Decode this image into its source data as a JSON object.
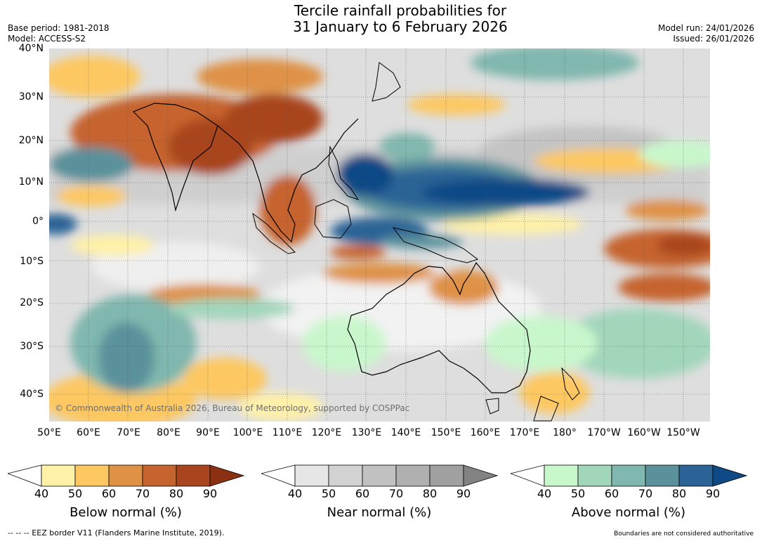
{
  "title": {
    "line1": "Tercile rainfall probabilities for",
    "line2": "31 January to 6 February 2026"
  },
  "meta_left": {
    "base_period": "Base period: 1981-2018",
    "model": "Model: ACCESS-S2"
  },
  "meta_right": {
    "model_run": "Model run: 24/01/2026",
    "issued": "Issued: 26/01/2026"
  },
  "latitude_labels": [
    "40°N",
    "30°N",
    "20°N",
    "10°N",
    "0°",
    "10°S",
    "20°S",
    "30°S",
    "40°S"
  ],
  "longitude_labels": [
    "50°E",
    "60°E",
    "70°E",
    "80°E",
    "90°E",
    "100°E",
    "110°E",
    "120°E",
    "130°E",
    "140°E",
    "150°E",
    "160°E",
    "170°E",
    "180°",
    "170°W",
    "160°W",
    "150°W"
  ],
  "copyright": "© Commonwealth of Australia 2026, Bureau of Meteorology, supported by COSPPac",
  "colorbars": {
    "below": {
      "label": "Below normal (%)",
      "ticks": [
        "40",
        "50",
        "60",
        "70",
        "80",
        "90"
      ],
      "colors": [
        "#fff1a8",
        "#fdc862",
        "#df9246",
        "#c6642f",
        "#a9451e",
        "#8a3114"
      ]
    },
    "near": {
      "label": "Near normal (%)",
      "ticks": [
        "40",
        "50",
        "60",
        "70",
        "80",
        "90"
      ],
      "colors": [
        "#e6e6e6",
        "#d2d2d2",
        "#c1c1c1",
        "#b0b0b0",
        "#a0a0a0",
        "#828282"
      ]
    },
    "above": {
      "label": "Above normal (%)",
      "ticks": [
        "40",
        "50",
        "60",
        "70",
        "80",
        "90"
      ],
      "colors": [
        "#c9f7cc",
        "#a2d6bb",
        "#80b7ae",
        "#5a919b",
        "#2c6396",
        "#0f4a86"
      ]
    }
  },
  "footer": {
    "eez": "--  --  -- EEZ border V11 (Flanders Marine Institute, 2019).",
    "disclaimer": "Boundaries are not considered authoritative"
  }
}
